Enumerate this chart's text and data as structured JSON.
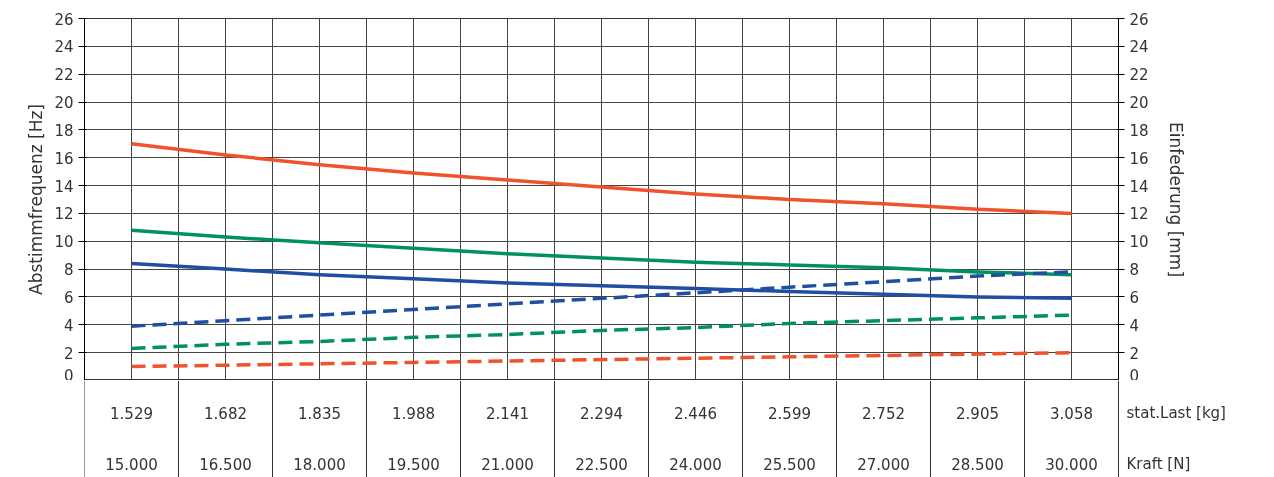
{
  "chart_data": {
    "type": "line",
    "ylabel": "Abstimmfrequenz [Hz]",
    "y2label": "Einfederung [mm]",
    "xlabel": "stat.Last [kg]",
    "categories": [
      "1.529",
      "1.682",
      "1.835",
      "1.988",
      "2.141",
      "2.294",
      "2.446",
      "2.599",
      "2.752",
      "2.905",
      "3.058"
    ],
    "annotations": [
      "15.000",
      "16.500",
      "18.000",
      "19.500",
      "21.000",
      "22.500",
      "24.000",
      "25.500",
      "27.000",
      "28.500",
      "30.000",
      "Kraft [N]"
    ],
    "series": [
      {
        "color": "#f0522d",
        "line_style": "solid",
        "values": [
          17.0,
          16.2,
          15.5,
          14.9,
          14.4,
          13.9,
          13.4,
          13.0,
          12.7,
          12.3,
          12.0
        ]
      },
      {
        "color": "#00925a",
        "line_style": "solid",
        "values": [
          10.8,
          10.3,
          9.9,
          9.5,
          9.1,
          8.8,
          8.5,
          8.3,
          8.1,
          7.8,
          7.6
        ]
      },
      {
        "color": "#1f4ea3",
        "line_style": "solid",
        "values": [
          8.4,
          8.0,
          7.6,
          7.3,
          7.0,
          6.8,
          6.6,
          6.4,
          6.2,
          6.0,
          5.9
        ]
      },
      {
        "color": "#1f4ea3",
        "line_style": "dashed",
        "values": [
          3.9,
          4.3,
          4.7,
          5.1,
          5.5,
          5.9,
          6.3,
          6.7,
          7.1,
          7.5,
          7.8
        ]
      },
      {
        "color": "#00925a",
        "line_style": "dashed",
        "values": [
          2.3,
          2.6,
          2.8,
          3.1,
          3.3,
          3.6,
          3.8,
          4.1,
          4.3,
          4.5,
          4.7
        ]
      },
      {
        "color": "#f0522d",
        "line_style": "dashed",
        "values": [
          1.0,
          1.1,
          1.2,
          1.3,
          1.4,
          1.5,
          1.6,
          1.7,
          1.8,
          1.9,
          2.0
        ]
      }
    ],
    "ylim": [
      0,
      26
    ],
    "yticks": [
      0,
      2,
      4,
      6,
      8,
      10,
      12,
      14,
      16,
      18,
      20,
      22,
      24,
      26
    ],
    "y2lim": [
      0,
      26
    ],
    "y2ticks": [
      0,
      2,
      4,
      6,
      8,
      10,
      12,
      14,
      16,
      18,
      20,
      22,
      24,
      26
    ],
    "grid": true,
    "marker": "none"
  }
}
